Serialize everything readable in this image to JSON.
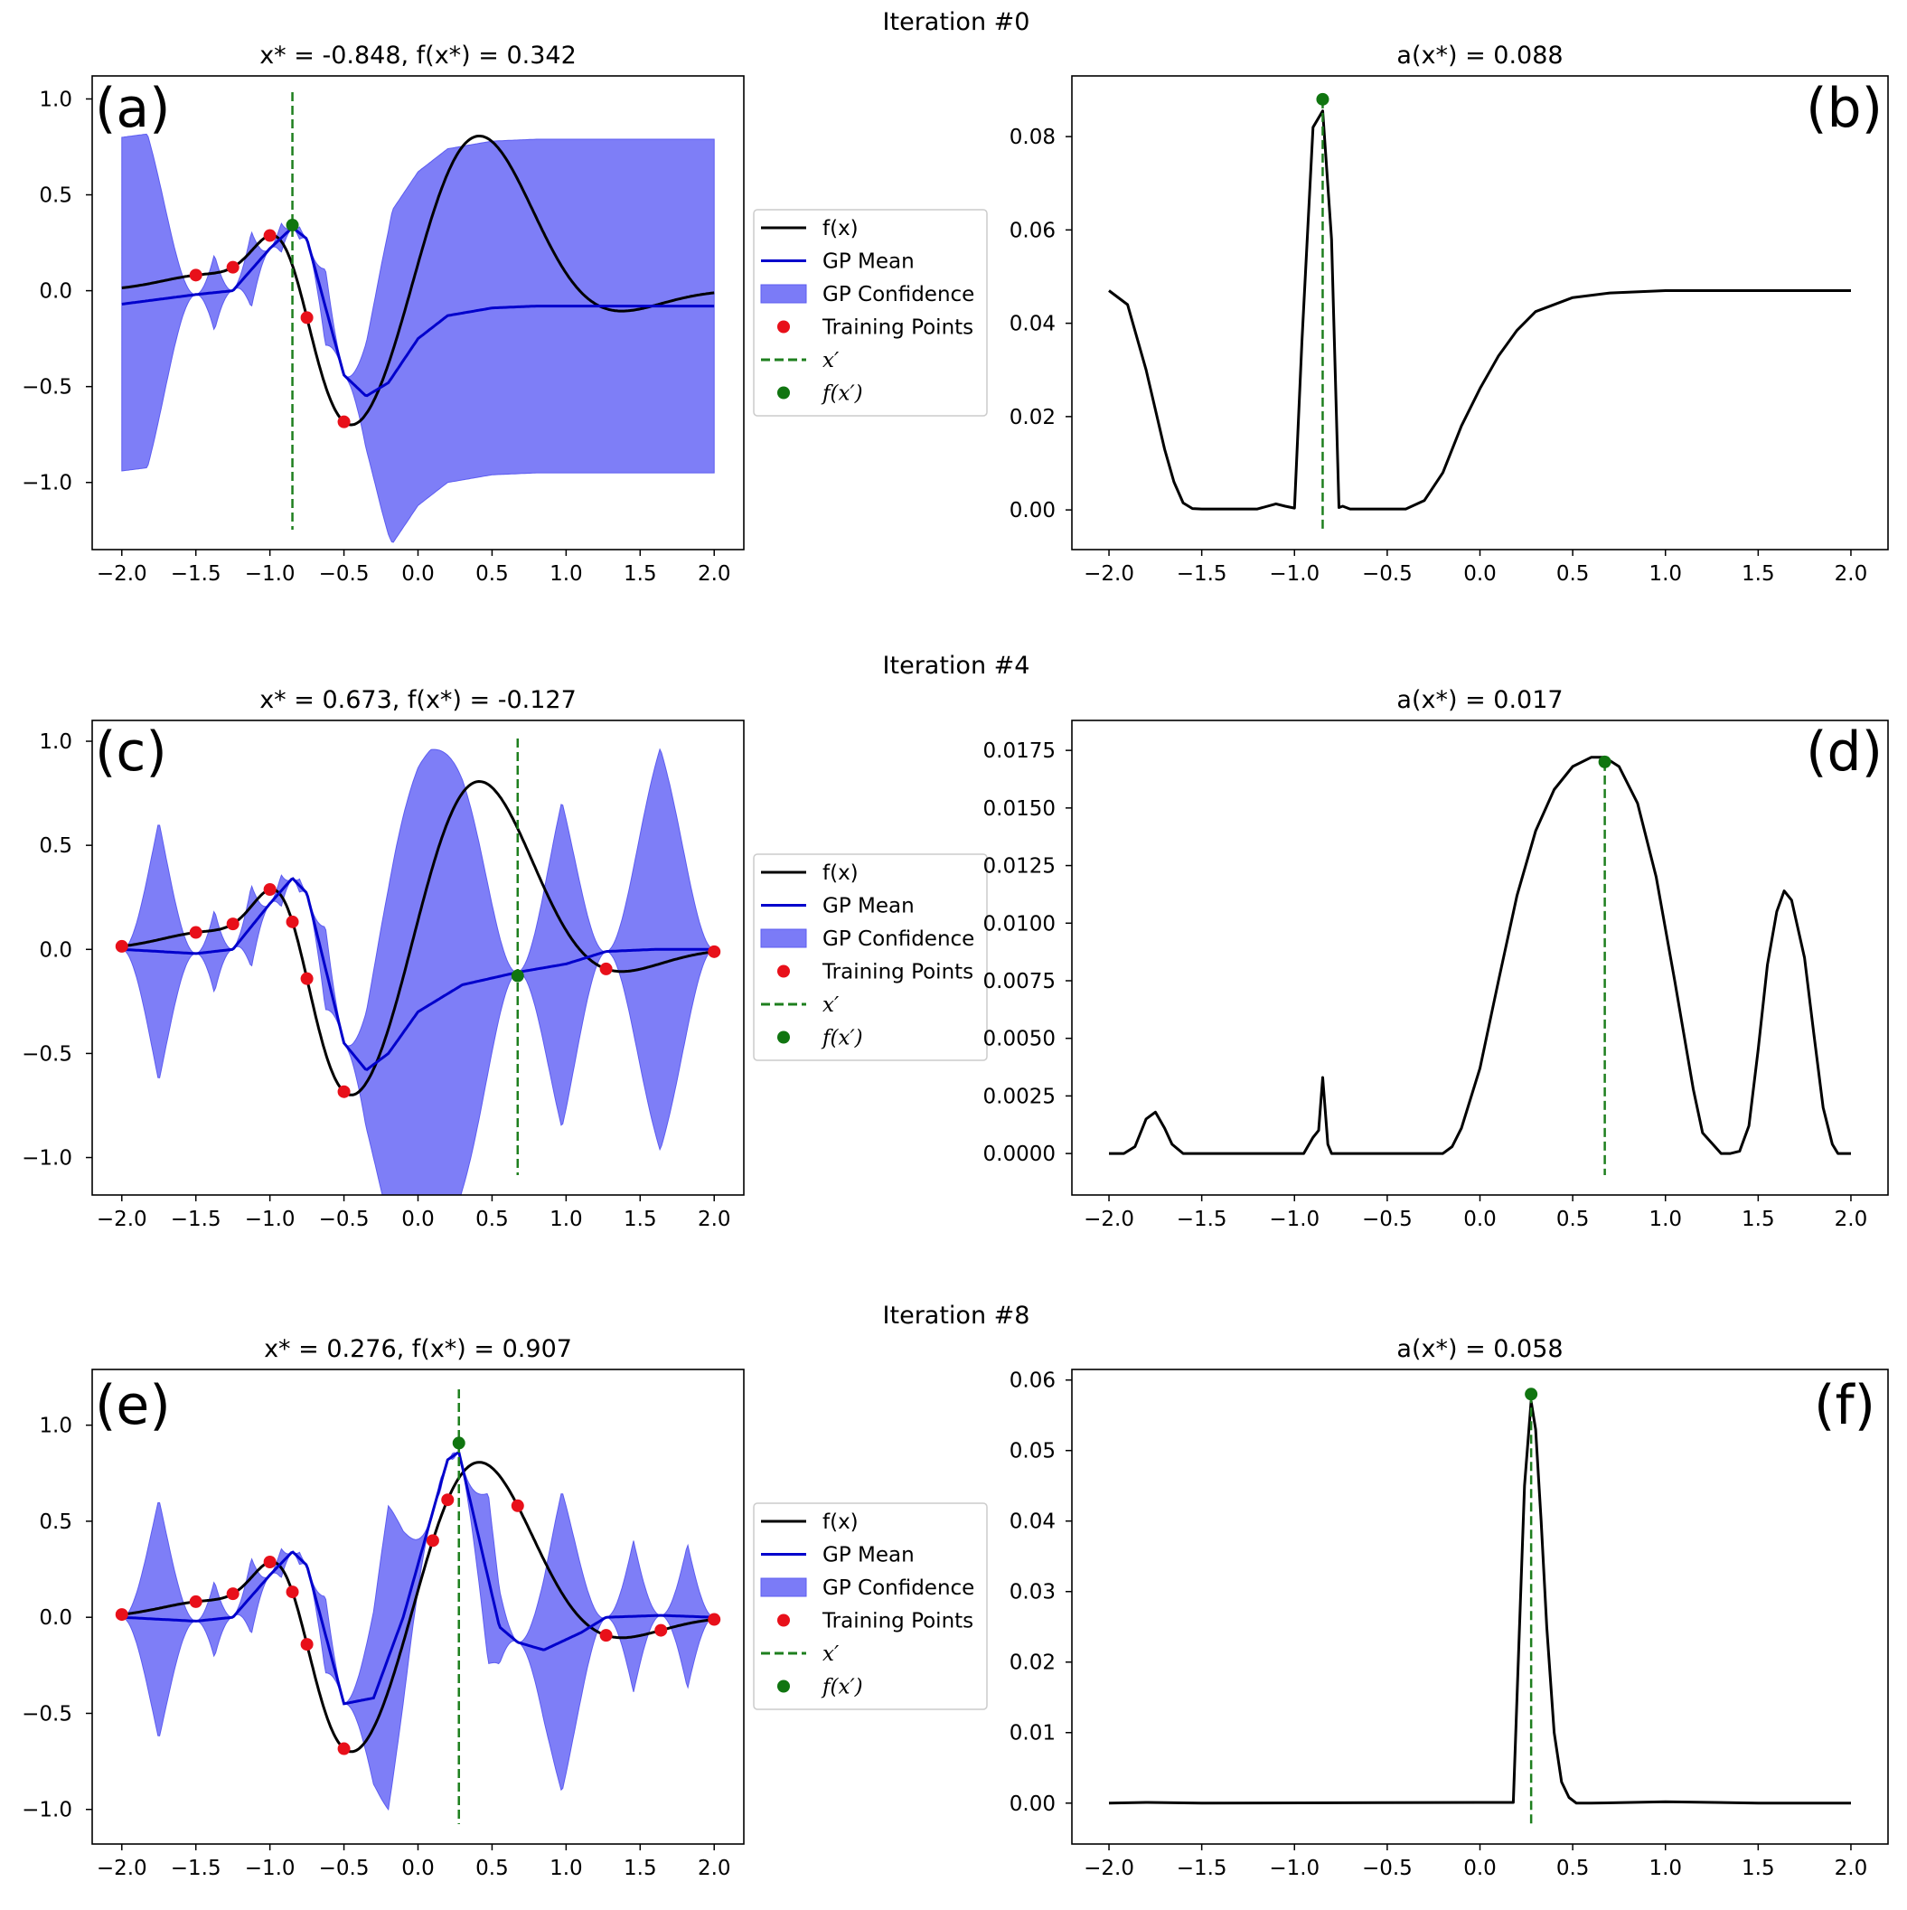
{
  "iterations": [
    {
      "title": "Iteration #0"
    },
    {
      "title": "Iteration #4"
    },
    {
      "title": "Iteration #8"
    }
  ],
  "legend": {
    "fx": "f(x)",
    "gp_mean": "GP Mean",
    "gp_confidence": "GP Confidence",
    "training_points": "Training Points",
    "x_prime": "x′",
    "f_x_prime": "f(x′)"
  },
  "colors": {
    "fx": "#000000",
    "gp_mean": "#0000cc",
    "gp_confidence": "#7b7bf7",
    "training_points": "#e8101a",
    "x_prime": "#1e7f1e",
    "f_x_prime": "#107510"
  },
  "chart_data": [
    {
      "panel": "(a)",
      "type": "line",
      "title": "x* = -0.848, f(x*) = 0.342",
      "xlim": [
        -2.2,
        2.2
      ],
      "ylim": [
        -1.35,
        1.12
      ],
      "xticks": [
        -2.0,
        -1.5,
        -1.0,
        -0.5,
        0.0,
        0.5,
        1.0,
        1.5,
        2.0
      ],
      "xtick_labels": [
        "−2.0",
        "−1.5",
        "−1.0",
        "−0.5",
        "0.0",
        "0.5",
        "1.0",
        "1.5",
        "2.0"
      ],
      "yticks": [
        1.0,
        0.5,
        0.0,
        -0.5,
        -1.0
      ],
      "ytick_labels": [
        "1.0",
        "0.5",
        "0.0",
        "−0.5",
        "−1.0"
      ],
      "training_x": [
        -1.5,
        -1.25,
        -1.0,
        -0.75,
        -0.5
      ],
      "x_prime": -0.848,
      "f_x_prime": 0.342
    },
    {
      "panel": "(b)",
      "type": "line",
      "title": "a(x*) = 0.088",
      "xlim": [
        -2.2,
        2.2
      ],
      "ylim": [
        -0.0085,
        0.093
      ],
      "xticks": [
        -2.0,
        -1.5,
        -1.0,
        -0.5,
        0.0,
        0.5,
        1.0,
        1.5,
        2.0
      ],
      "xtick_labels": [
        "−2.0",
        "−1.5",
        "−1.0",
        "−0.5",
        "0.0",
        "0.5",
        "1.0",
        "1.5",
        "2.0"
      ],
      "yticks": [
        0.08,
        0.06,
        0.04,
        0.02,
        0.0
      ],
      "ytick_labels": [
        "0.08",
        "0.06",
        "0.04",
        "0.02",
        "0.00"
      ],
      "x": [
        -2.0,
        -1.9,
        -1.8,
        -1.7,
        -1.65,
        -1.6,
        -1.55,
        -1.5,
        -1.2,
        -1.1,
        -1.05,
        -1.0,
        -0.96,
        -0.9,
        -0.848,
        -0.8,
        -0.76,
        -0.74,
        -0.7,
        -0.6,
        -0.4,
        -0.3,
        -0.2,
        -0.1,
        0.0,
        0.1,
        0.2,
        0.3,
        0.5,
        0.7,
        1.0,
        1.5,
        2.0
      ],
      "y": [
        0.047,
        0.044,
        0.03,
        0.013,
        0.006,
        0.0015,
        0.0003,
        0.0002,
        0.0002,
        0.0013,
        0.0008,
        0.0004,
        0.036,
        0.082,
        0.0855,
        0.058,
        0.0005,
        0.0008,
        0.0002,
        0.0002,
        0.0002,
        0.002,
        0.008,
        0.018,
        0.026,
        0.033,
        0.0385,
        0.0425,
        0.0455,
        0.0465,
        0.047,
        0.047,
        0.047
      ],
      "x_prime": -0.848,
      "a_x_prime": 0.088
    },
    {
      "panel": "(c)",
      "type": "line",
      "title": "x* = 0.673, f(x*) = -0.127",
      "xlim": [
        -2.2,
        2.2
      ],
      "ylim": [
        -1.18,
        1.1
      ],
      "xticks": [
        -2.0,
        -1.5,
        -1.0,
        -0.5,
        0.0,
        0.5,
        1.0,
        1.5,
        2.0
      ],
      "xtick_labels": [
        "−2.0",
        "−1.5",
        "−1.0",
        "−0.5",
        "0.0",
        "0.5",
        "1.0",
        "1.5",
        "2.0"
      ],
      "yticks": [
        1.0,
        0.5,
        0.0,
        -0.5,
        -1.0
      ],
      "ytick_labels": [
        "1.0",
        "0.5",
        "0.0",
        "−0.5",
        "−1.0"
      ],
      "training_x": [
        -2.0,
        -1.5,
        -1.25,
        -1.0,
        -0.848,
        -0.75,
        -0.5,
        1.27,
        2.0
      ],
      "x_prime": 0.673,
      "f_x_prime": -0.127
    },
    {
      "panel": "(d)",
      "type": "line",
      "title": "a(x*) = 0.017",
      "xlim": [
        -2.2,
        2.2
      ],
      "ylim": [
        -0.0018,
        0.0188
      ],
      "xticks": [
        -2.0,
        -1.5,
        -1.0,
        -0.5,
        0.0,
        0.5,
        1.0,
        1.5,
        2.0
      ],
      "xtick_labels": [
        "−2.0",
        "−1.5",
        "−1.0",
        "−0.5",
        "0.0",
        "0.5",
        "1.0",
        "1.5",
        "2.0"
      ],
      "yticks": [
        0.0175,
        0.015,
        0.0125,
        0.01,
        0.0075,
        0.005,
        0.0025,
        0.0
      ],
      "ytick_labels": [
        "0.0175",
        "0.0150",
        "0.0125",
        "0.0100",
        "0.0075",
        "0.0050",
        "0.0025",
        "0.0000"
      ],
      "x": [
        -2.0,
        -1.92,
        -1.86,
        -1.8,
        -1.75,
        -1.7,
        -1.66,
        -1.6,
        -1.5,
        -0.95,
        -0.9,
        -0.87,
        -0.848,
        -0.82,
        -0.8,
        -0.75,
        -0.2,
        -0.15,
        -0.1,
        0.0,
        0.1,
        0.2,
        0.3,
        0.4,
        0.5,
        0.6,
        0.673,
        0.75,
        0.85,
        0.95,
        1.05,
        1.15,
        1.2,
        1.3,
        1.35,
        1.4,
        1.45,
        1.5,
        1.55,
        1.6,
        1.64,
        1.68,
        1.75,
        1.8,
        1.85,
        1.9,
        1.93,
        2.0
      ],
      "y": [
        0.0,
        0.0,
        0.0003,
        0.0015,
        0.0018,
        0.0011,
        0.0004,
        0.0,
        0.0,
        0.0,
        0.0007,
        0.001,
        0.0033,
        0.0004,
        0.0,
        0.0,
        0.0,
        0.0003,
        0.0011,
        0.0037,
        0.0075,
        0.0112,
        0.014,
        0.0158,
        0.0168,
        0.0172,
        0.0172,
        0.0168,
        0.0152,
        0.012,
        0.0075,
        0.0028,
        0.0009,
        0.0,
        0.0,
        0.0001,
        0.0012,
        0.0045,
        0.0082,
        0.0105,
        0.0114,
        0.011,
        0.0085,
        0.0052,
        0.002,
        0.0004,
        0.0,
        0.0
      ],
      "x_prime": 0.673,
      "a_x_prime": 0.017
    },
    {
      "panel": "(e)",
      "type": "line",
      "title": "x* = 0.276, f(x*) = 0.907",
      "xlim": [
        -2.2,
        2.2
      ],
      "ylim": [
        -1.18,
        1.29
      ],
      "xticks": [
        -2.0,
        -1.5,
        -1.0,
        -0.5,
        0.0,
        0.5,
        1.0,
        1.5,
        2.0
      ],
      "xtick_labels": [
        "−2.0",
        "−1.5",
        "−1.0",
        "−0.5",
        "0.0",
        "0.5",
        "1.0",
        "1.5",
        "2.0"
      ],
      "yticks": [
        1.0,
        0.5,
        0.0,
        -0.5,
        -1.0
      ],
      "ytick_labels": [
        "1.0",
        "0.5",
        "0.0",
        "−0.5",
        "−1.0"
      ],
      "training_x": [
        -2.0,
        -1.5,
        -1.25,
        -1.0,
        -0.848,
        -0.75,
        -0.5,
        0.1,
        0.2,
        0.673,
        1.27,
        1.64,
        2.0
      ],
      "x_prime": 0.276,
      "f_x_prime": 0.907
    },
    {
      "panel": "(f)",
      "type": "line",
      "title": "a(x*) = 0.058",
      "xlim": [
        -2.2,
        2.2
      ],
      "ylim": [
        -0.0058,
        0.0615
      ],
      "xticks": [
        -2.0,
        -1.5,
        -1.0,
        -0.5,
        0.0,
        0.5,
        1.0,
        1.5,
        2.0
      ],
      "xtick_labels": [
        "−2.0",
        "−1.5",
        "−1.0",
        "−0.5",
        "0.0",
        "0.5",
        "1.0",
        "1.5",
        "2.0"
      ],
      "yticks": [
        0.06,
        0.05,
        0.04,
        0.03,
        0.02,
        0.01,
        0.0
      ],
      "ytick_labels": [
        "0.06",
        "0.05",
        "0.04",
        "0.03",
        "0.02",
        "0.01",
        "0.00"
      ],
      "x": [
        -2.0,
        -1.8,
        -1.5,
        0.0,
        0.18,
        0.2,
        0.24,
        0.276,
        0.3,
        0.33,
        0.36,
        0.4,
        0.44,
        0.48,
        0.52,
        0.6,
        1.0,
        1.5,
        2.0
      ],
      "y": [
        0.0,
        0.0001,
        0.0,
        0.0001,
        0.0001,
        0.015,
        0.045,
        0.057,
        0.053,
        0.04,
        0.025,
        0.01,
        0.003,
        0.0008,
        0.0,
        0.0,
        0.0002,
        0.0,
        0.0
      ],
      "x_prime": 0.276,
      "a_x_prime": 0.058
    }
  ]
}
